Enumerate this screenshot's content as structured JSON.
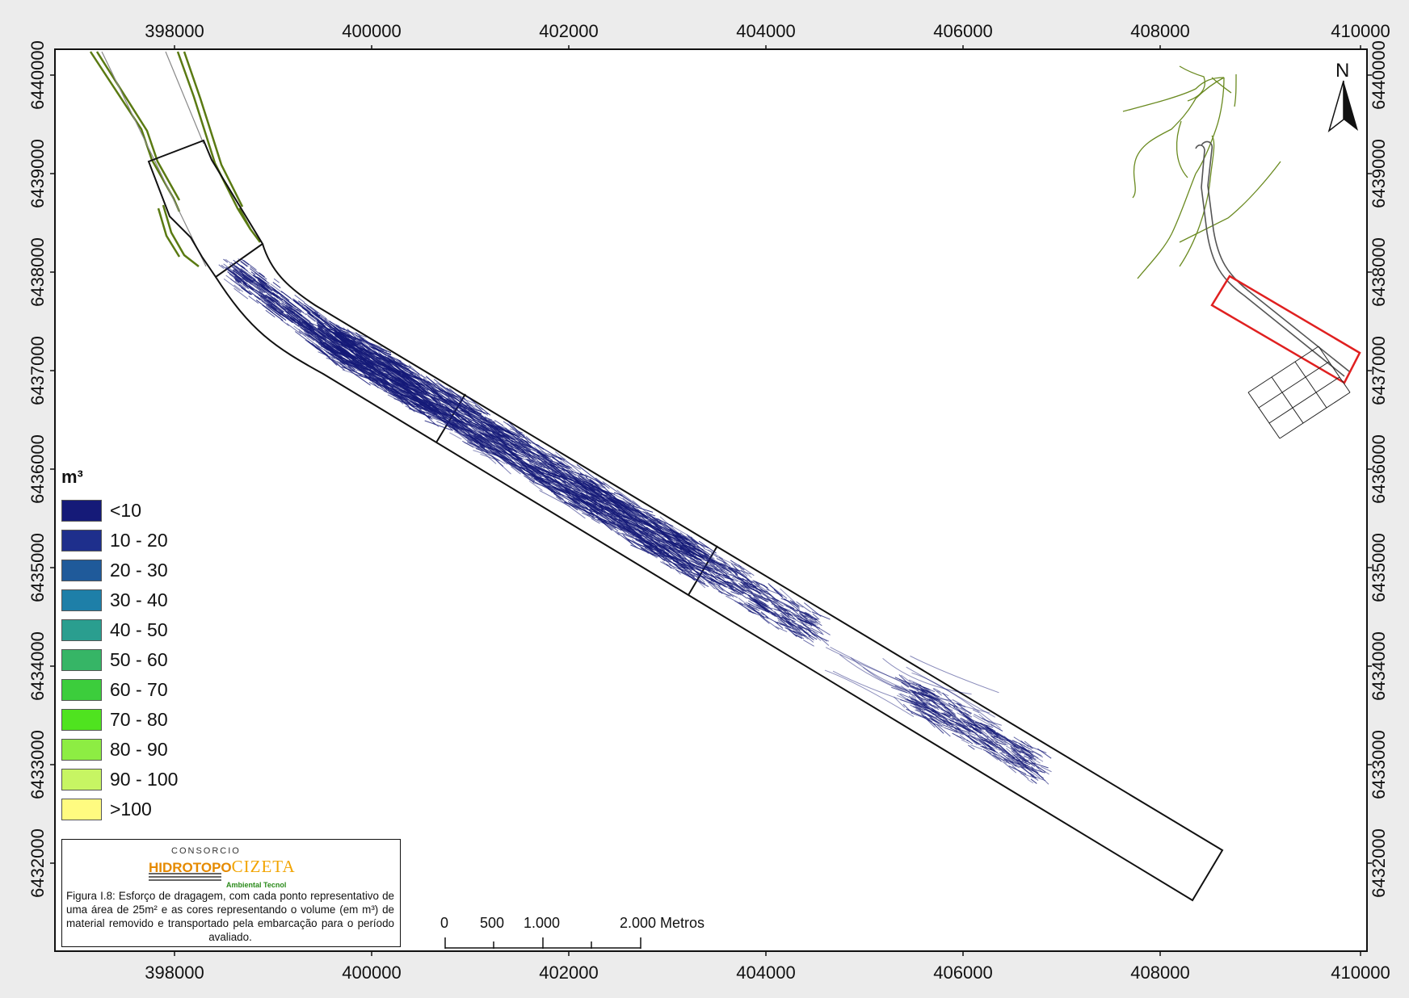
{
  "map": {
    "x_ticks": [
      "398000",
      "400000",
      "402000",
      "404000",
      "406000",
      "408000",
      "410000"
    ],
    "y_ticks": [
      "6440000",
      "6439000",
      "6438000",
      "6437000",
      "6436000",
      "6435000",
      "6434000",
      "6433000",
      "6432000"
    ],
    "north_label": "N"
  },
  "legend": {
    "title": "m³",
    "items": [
      {
        "label": "<10",
        "color": "#151a78"
      },
      {
        "label": "10 - 20",
        "color": "#1e2f8c"
      },
      {
        "label": "20 - 30",
        "color": "#1f5a9a"
      },
      {
        "label": "30 - 40",
        "color": "#1e7fa8"
      },
      {
        "label": "40 - 50",
        "color": "#2a9e8f"
      },
      {
        "label": "50 - 60",
        "color": "#36b566"
      },
      {
        "label": "60 - 70",
        "color": "#3ccd3c"
      },
      {
        "label": "70 - 80",
        "color": "#4fe31f"
      },
      {
        "label": "80 - 90",
        "color": "#8ded43"
      },
      {
        "label": "90 - 100",
        "color": "#c7f563"
      },
      {
        "label": ">100",
        "color": "#fffb80"
      }
    ]
  },
  "caption": {
    "logo_top": "CONSORCIO",
    "logo_a": "HIDROTOPO",
    "logo_b": "CIZETA",
    "logo_sub": "Ambiental Tecnol",
    "text": "Figura I.8: Esforço de dragagem, com cada ponto representativo de uma área de 25m² e as cores representando o volume (em m³) de material removido e transportado pela embarcação para o período avaliado."
  },
  "scale_bar": {
    "labels": [
      "0",
      "500",
      "1.000",
      "2.000 Metros"
    ]
  },
  "colors": {
    "channel_outline": "#111111",
    "dredge_points": "#151a78",
    "coastline": "#5a7a12",
    "inset_highlight": "#e02020"
  }
}
